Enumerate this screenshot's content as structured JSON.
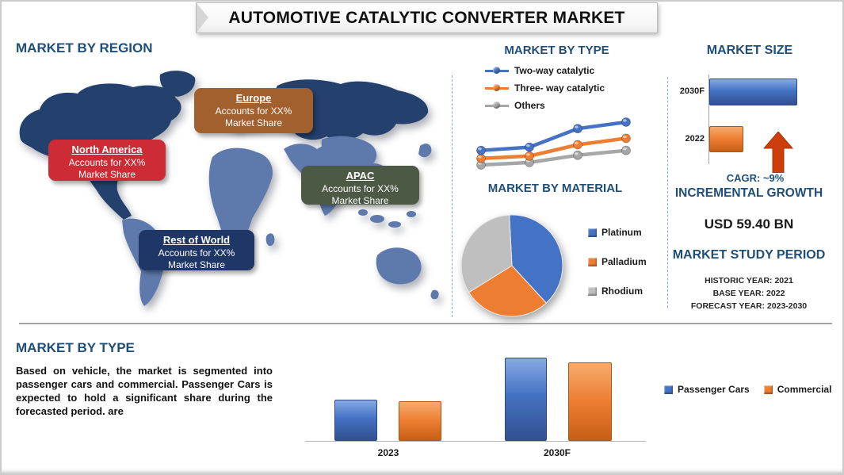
{
  "title": "AUTOMOTIVE CATALYTIC CONVERTER MARKET",
  "colors": {
    "heading": "#1F4E79",
    "blue": "#4472C4",
    "orange": "#ED7D31",
    "gray": "#A6A6A6",
    "map_dark": "#24416E",
    "map_light": "#5E7AAC",
    "arrow_red": "#CE3E0C"
  },
  "sections": {
    "region": {
      "heading": "MARKET BY REGION",
      "callouts": [
        {
          "name": "Europe",
          "line1": "Accounts for XX%",
          "line2": "Market Share",
          "color": "#A2602E"
        },
        {
          "name": "North America",
          "line1": "Accounts for XX%",
          "line2": "Market Share",
          "color": "#CD2B35"
        },
        {
          "name": "APAC",
          "line1": "Accounts for XX%",
          "line2": "Market Share",
          "color": "#4C5A45"
        },
        {
          "name": "Rest of World",
          "line1": "Accounts for XX%",
          "line2": "Market Share",
          "color": "#1E3766"
        }
      ]
    },
    "type_trend": {
      "heading": "MARKET BY TYPE"
    },
    "material": {
      "heading": "MARKET BY MATERIAL"
    },
    "market_size": {
      "heading": "MARKET SIZE",
      "cagr": "CAGR: ~9%",
      "incremental_growth": "INCREMENTAL GROWTH",
      "incremental_value": "USD 59.40 BN",
      "study_period_heading": "MARKET STUDY PERIOD",
      "study_period": [
        "HISTORIC YEAR: 2021",
        "BASE YEAR: 2022",
        "FORECAST YEAR: 2023-2030"
      ]
    },
    "vehicle": {
      "heading": "MARKET BY TYPE",
      "paragraph": "Based on vehicle, the market is segmented into passenger cars and commercial. Passenger Cars is expected to hold a significant share during the forecasted period. are"
    }
  },
  "chart_data": [
    {
      "id": "market-by-type-trend",
      "type": "line",
      "title": "MARKET BY TYPE",
      "x": [
        1,
        2,
        3,
        4
      ],
      "series": [
        {
          "name": "Two-way catalytic",
          "color": "#4472C4",
          "values": [
            28,
            32,
            55,
            63
          ]
        },
        {
          "name": "Three- way catalytic",
          "color": "#ED7D31",
          "values": [
            18,
            21,
            35,
            43
          ]
        },
        {
          "name": "Others",
          "color": "#A6A6A6",
          "values": [
            10,
            13,
            22,
            28
          ]
        }
      ],
      "axes_visible": false,
      "legend_position": "top-left",
      "value_unit": "relative"
    },
    {
      "id": "market-by-material-pie",
      "type": "pie",
      "title": "MARKET BY MATERIAL",
      "labels": [
        "Platinum",
        "Palladium",
        "Rhodium"
      ],
      "values": [
        39,
        28,
        33
      ],
      "colors": [
        "#4472C4",
        "#ED7D31",
        "#BFBFBF"
      ],
      "legend_position": "right",
      "value_unit": "percent-estimated"
    },
    {
      "id": "market-size-bars",
      "type": "bar",
      "title": "MARKET SIZE",
      "orientation": "horizontal",
      "categories": [
        "2030F",
        "2022"
      ],
      "values": [
        100,
        39
      ],
      "colors": [
        "#4472C4",
        "#ED7D31"
      ],
      "value_unit": "relative"
    },
    {
      "id": "market-by-vehicle-bars",
      "type": "bar",
      "orientation": "vertical",
      "categories": [
        "2023",
        "2030F"
      ],
      "series": [
        {
          "name": "Passenger Cars",
          "color": "#4472C4",
          "values": [
            52,
            105
          ]
        },
        {
          "name": "Commercial",
          "color": "#ED7D31",
          "values": [
            50,
            99
          ]
        }
      ],
      "legend_position": "right",
      "value_unit": "relative"
    }
  ]
}
